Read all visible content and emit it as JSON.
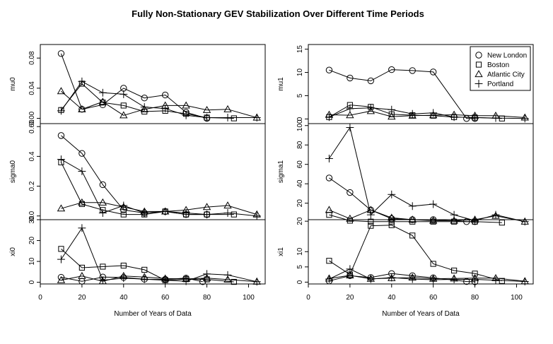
{
  "title": "Fully Non-Stationary GEV Stabilization Over Different Time Periods",
  "legend": [
    {
      "name": "New London",
      "marker": "circle"
    },
    {
      "name": "Boston",
      "marker": "square"
    },
    {
      "name": "Atlantic City",
      "marker": "triangle"
    },
    {
      "name": "Portland",
      "marker": "plus"
    }
  ],
  "chart_data": [
    {
      "type": "line",
      "ylabel": "mu0",
      "xlabel": "",
      "column": "left",
      "row": 0,
      "xlim": [
        0,
        108
      ],
      "ylim": [
        -0.007,
        0.098
      ],
      "yticks": [
        0.0,
        0.04,
        0.08
      ],
      "yticklabels": [
        "0.00",
        "0.04",
        "0.08"
      ],
      "series": [
        {
          "name": "New London",
          "marker": "circle",
          "x": [
            10,
            20,
            30,
            40,
            50,
            60,
            70,
            80
          ],
          "y": [
            0.086,
            0.012,
            0.018,
            0.04,
            0.027,
            0.031,
            0.008,
            0.0
          ]
        },
        {
          "name": "Boston",
          "marker": "square",
          "x": [
            10,
            20,
            30,
            40,
            50,
            60,
            70,
            80,
            93
          ],
          "y": [
            0.011,
            0.046,
            0.021,
            0.017,
            0.009,
            0.01,
            0.006,
            0.001,
            0.0
          ]
        },
        {
          "name": "Atlantic City",
          "marker": "triangle",
          "x": [
            10,
            20,
            30,
            40,
            50,
            60,
            70,
            80,
            90,
            104
          ],
          "y": [
            0.036,
            0.012,
            0.022,
            0.004,
            0.012,
            0.017,
            0.017,
            0.011,
            0.012,
            0.001
          ]
        },
        {
          "name": "Portland",
          "marker": "plus",
          "x": [
            10,
            20,
            30,
            40,
            50,
            60,
            70,
            80,
            90,
            104
          ],
          "y": [
            0.01,
            0.049,
            0.034,
            0.032,
            0.015,
            0.013,
            0.004,
            0.001,
            0.001,
            0.001
          ]
        }
      ]
    },
    {
      "type": "line",
      "ylabel": "mu1",
      "xlabel": "",
      "column": "right",
      "row": 0,
      "xlim": [
        0,
        108
      ],
      "ylim": [
        -1,
        16
      ],
      "yticks": [
        0,
        5,
        10,
        15
      ],
      "yticklabels": [
        "0",
        "5",
        "10",
        "15"
      ],
      "series": [
        {
          "name": "New London",
          "marker": "circle",
          "x": [
            10,
            20,
            30,
            40,
            50,
            60,
            76,
            80
          ],
          "y": [
            10.5,
            8.8,
            8.2,
            10.6,
            10.4,
            10.1,
            0.1,
            0.1
          ]
        },
        {
          "name": "Boston",
          "marker": "square",
          "x": [
            10,
            20,
            30,
            40,
            50,
            60,
            70,
            80,
            93
          ],
          "y": [
            0.4,
            3.0,
            2.6,
            1.0,
            0.8,
            0.7,
            0.4,
            0.3,
            0.1
          ]
        },
        {
          "name": "Atlantic City",
          "marker": "triangle",
          "x": [
            10,
            20,
            30,
            40,
            50,
            60,
            70,
            80,
            90,
            104
          ],
          "y": [
            0.9,
            0.8,
            1.7,
            0.5,
            0.7,
            0.8,
            0.9,
            0.7,
            0.7,
            0.3
          ]
        },
        {
          "name": "Portland",
          "marker": "plus",
          "x": [
            10,
            20,
            30,
            40,
            50,
            60,
            70,
            80,
            90,
            104
          ],
          "y": [
            0.4,
            2.2,
            2.4,
            2.0,
            1.1,
            1.3,
            0.4,
            0.3,
            0.2,
            0.1
          ]
        }
      ]
    },
    {
      "type": "line",
      "ylabel": "sigma0",
      "xlabel": "",
      "column": "left",
      "row": 1,
      "xlim": [
        0,
        108
      ],
      "ylim": [
        -0.025,
        0.62
      ],
      "yticks": [
        0.0,
        0.2,
        0.4,
        0.6
      ],
      "yticklabels": [
        "0.0",
        "0.2",
        "0.4",
        "0.60"
      ],
      "series": [
        {
          "name": "New London",
          "marker": "circle",
          "x": [
            10,
            20,
            30,
            40,
            50,
            60,
            70,
            80
          ],
          "y": [
            0.54,
            0.42,
            0.21,
            0.04,
            0.02,
            0.03,
            0.01,
            0.01
          ]
        },
        {
          "name": "Boston",
          "marker": "square",
          "x": [
            10,
            20,
            30,
            40,
            50,
            60,
            70,
            80,
            93
          ],
          "y": [
            0.36,
            0.08,
            0.04,
            0.01,
            0.01,
            0.03,
            0.01,
            0.01,
            0.01
          ]
        },
        {
          "name": "Atlantic City",
          "marker": "triangle",
          "x": [
            10,
            20,
            30,
            40,
            50,
            60,
            70,
            80,
            90,
            104
          ],
          "y": [
            0.05,
            0.09,
            0.09,
            0.06,
            0.03,
            0.03,
            0.04,
            0.06,
            0.07,
            0.01
          ]
        },
        {
          "name": "Portland",
          "marker": "plus",
          "x": [
            10,
            20,
            30,
            40,
            50,
            60,
            70,
            80,
            90,
            104
          ],
          "y": [
            0.38,
            0.3,
            0.02,
            0.07,
            0.02,
            0.03,
            0.02,
            0.01,
            0.02,
            0.0
          ]
        }
      ]
    },
    {
      "type": "line",
      "ylabel": "sigma1",
      "xlabel": "",
      "column": "right",
      "row": 1,
      "xlim": [
        0,
        108
      ],
      "ylim": [
        3,
        102
      ],
      "yticks": [
        20,
        40,
        60,
        80,
        100
      ],
      "yticklabels": [
        "20",
        "40",
        "60",
        "80",
        "100"
      ],
      "series": [
        {
          "name": "New London",
          "marker": "circle",
          "x": [
            10,
            20,
            30,
            40,
            50,
            60,
            76,
            80
          ],
          "y": [
            46,
            31,
            13,
            4,
            3,
            3,
            1,
            1
          ]
        },
        {
          "name": "Boston",
          "marker": "square",
          "x": [
            10,
            20,
            30,
            40,
            50,
            60,
            70,
            80,
            93
          ],
          "y": [
            8,
            2,
            1,
            1,
            1,
            1,
            1,
            1,
            0
          ]
        },
        {
          "name": "Atlantic City",
          "marker": "triangle",
          "x": [
            10,
            20,
            30,
            40,
            50,
            60,
            70,
            80,
            90,
            104
          ],
          "y": [
            13,
            4,
            13,
            5,
            3,
            2,
            2,
            3,
            7,
            1
          ]
        },
        {
          "name": "Portland",
          "marker": "plus",
          "x": [
            10,
            20,
            30,
            40,
            50,
            60,
            70,
            80,
            90,
            104
          ],
          "y": [
            66,
            98,
            8,
            29,
            17,
            19,
            8,
            2,
            8,
            1
          ]
        }
      ]
    },
    {
      "type": "line",
      "ylabel": "xi0",
      "xlabel": "Number of Years of Data",
      "column": "left",
      "row": 2,
      "xlim": [
        0,
        108
      ],
      "ylim": [
        -0.8,
        30
      ],
      "yticks": [
        0,
        10,
        20,
        30
      ],
      "yticklabels": [
        "0",
        "10",
        "20",
        "30"
      ],
      "xticks": [
        0,
        20,
        40,
        60,
        80,
        100
      ],
      "series": [
        {
          "name": "New London",
          "marker": "circle",
          "x": [
            10,
            20,
            30,
            40,
            50,
            60,
            70,
            78
          ],
          "y": [
            2.4,
            0.5,
            2.5,
            2.3,
            1.5,
            1.4,
            2.0,
            0.3
          ]
        },
        {
          "name": "Boston",
          "marker": "square",
          "x": [
            10,
            20,
            30,
            40,
            50,
            60,
            70,
            80,
            93
          ],
          "y": [
            16,
            7,
            7.5,
            8,
            6,
            1,
            1.5,
            1.4,
            0.2
          ]
        },
        {
          "name": "Atlantic City",
          "marker": "triangle",
          "x": [
            10,
            20,
            30,
            40,
            50,
            60,
            70,
            80,
            90,
            104
          ],
          "y": [
            1.0,
            3.0,
            0.5,
            3.0,
            2.5,
            1.8,
            1.6,
            2.0,
            1.3,
            0.3
          ]
        },
        {
          "name": "Portland",
          "marker": "plus",
          "x": [
            10,
            20,
            30,
            40,
            50,
            60,
            70,
            80,
            90,
            104
          ],
          "y": [
            11,
            26,
            1.0,
            2.0,
            1.5,
            1.0,
            0.5,
            4.0,
            3.5,
            0.3
          ]
        }
      ]
    },
    {
      "type": "line",
      "ylabel": "xi1",
      "xlabel": "Number of Years of Data",
      "column": "right",
      "row": 2,
      "xlim": [
        0,
        108
      ],
      "ylim": [
        -0.6,
        20.5
      ],
      "yticks": [
        0,
        5,
        10,
        20
      ],
      "yticklabels": [
        "0",
        "5",
        "10",
        "20"
      ],
      "xticks": [
        0,
        20,
        40,
        60,
        80,
        100
      ],
      "series": [
        {
          "name": "New London",
          "marker": "circle",
          "x": [
            10,
            20,
            30,
            40,
            50,
            60,
            76,
            80
          ],
          "y": [
            0.4,
            2.1,
            1.5,
            2.8,
            2.1,
            1.4,
            0.2,
            0.1
          ]
        },
        {
          "name": "Boston",
          "marker": "square",
          "x": [
            10,
            20,
            30,
            40,
            50,
            60,
            70,
            80,
            93
          ],
          "y": [
            7,
            2.5,
            18.5,
            18.7,
            15.3,
            6,
            3.8,
            2.8,
            0.4
          ]
        },
        {
          "name": "Atlantic City",
          "marker": "triangle",
          "x": [
            10,
            20,
            30,
            40,
            50,
            60,
            70,
            80,
            90,
            104
          ],
          "y": [
            1.2,
            2.2,
            1.1,
            1.3,
            1.5,
            1.1,
            1.2,
            1.3,
            1.3,
            0.3
          ]
        },
        {
          "name": "Portland",
          "marker": "plus",
          "x": [
            10,
            20,
            30,
            40,
            50,
            60,
            70,
            80,
            90,
            104
          ],
          "y": [
            1.0,
            4.3,
            1.0,
            1.5,
            1.0,
            0.8,
            0.9,
            0.9,
            0.6,
            0.2
          ]
        }
      ]
    }
  ]
}
